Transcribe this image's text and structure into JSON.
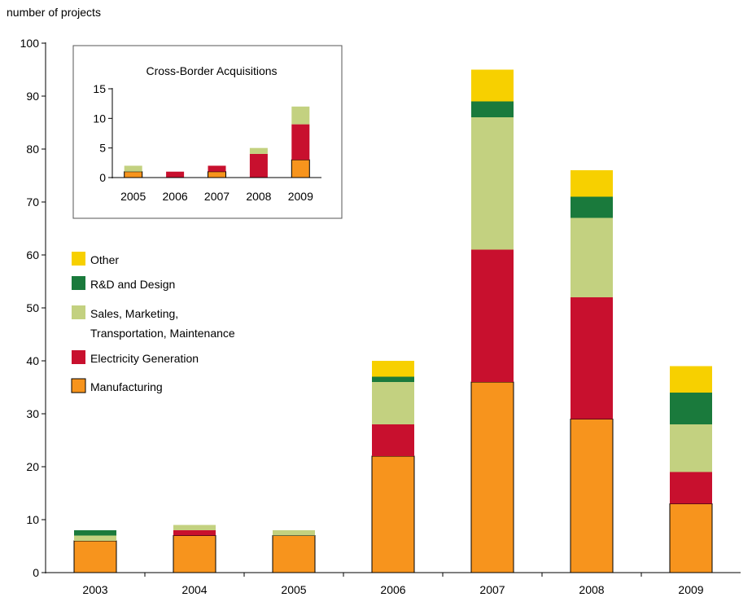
{
  "chart_data": [
    {
      "type": "bar",
      "stacked": true,
      "ylabel": "number of projects",
      "ylim": [
        0,
        100
      ],
      "yticks": [
        0,
        10,
        20,
        30,
        40,
        50,
        60,
        70,
        80,
        90,
        100
      ],
      "categories": [
        "2003",
        "2004",
        "2005",
        "2006",
        "2007",
        "2008",
        "2009"
      ],
      "series": [
        {
          "name": "Manufacturing",
          "color": "#f7941d",
          "values": [
            6,
            7,
            7,
            22,
            36,
            29,
            13
          ]
        },
        {
          "name": "Electricity Generation",
          "color": "#c8102e",
          "values": [
            0,
            1,
            0,
            6,
            25,
            23,
            6
          ]
        },
        {
          "name": "Sales, Marketing,",
          "name_line2": "Transportation, Maintenance",
          "color": "#c3d180",
          "values": [
            1,
            1,
            1,
            8,
            25,
            15,
            9
          ]
        },
        {
          "name": "R&D and Design",
          "color": "#1a7a3c",
          "values": [
            1,
            0,
            0,
            1,
            3,
            4,
            6
          ]
        },
        {
          "name": "Other",
          "color": "#f7d000",
          "values": [
            0,
            0,
            0,
            3,
            6,
            5,
            5
          ]
        }
      ],
      "legend": {
        "placement": "left",
        "order": [
          "Other",
          "R&D and Design",
          "Sales, Marketing,",
          "Electricity Generation",
          "Manufacturing"
        ]
      },
      "grid": false
    },
    {
      "type": "bar",
      "stacked": true,
      "title": "Cross-Border Acquisitions",
      "ylim": [
        0,
        15
      ],
      "yticks": [
        0,
        5,
        10,
        15
      ],
      "categories": [
        "2005",
        "2006",
        "2007",
        "2008",
        "2009"
      ],
      "series": [
        {
          "name": "Manufacturing",
          "color": "#f7941d",
          "values": [
            1,
            0,
            1,
            0,
            3
          ]
        },
        {
          "name": "Electricity Generation",
          "color": "#c8102e",
          "values": [
            0,
            1,
            1,
            4,
            6
          ]
        },
        {
          "name": "Sales, Marketing, Transportation, Maintenance",
          "color": "#c3d180",
          "values": [
            1,
            0,
            0,
            1,
            3
          ]
        }
      ],
      "grid": false
    }
  ]
}
